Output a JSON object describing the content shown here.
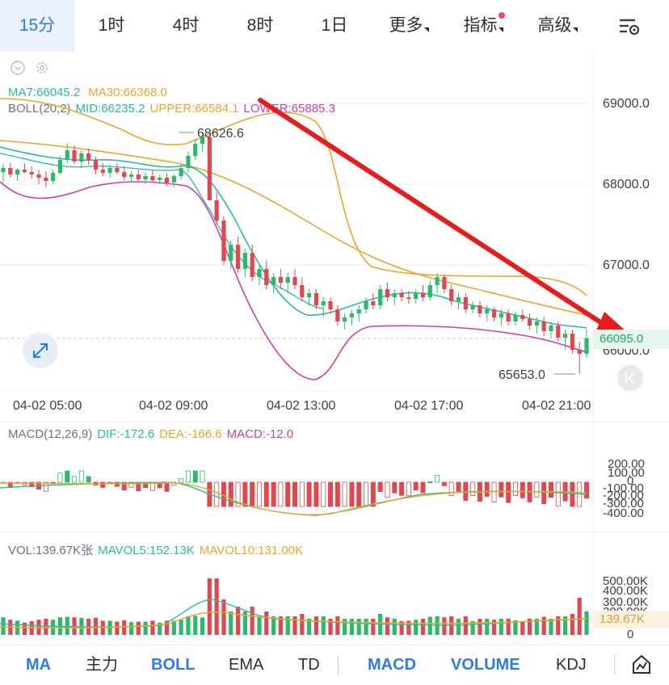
{
  "tabs": [
    {
      "label": "15分",
      "active": true
    },
    {
      "label": "1时"
    },
    {
      "label": "4时"
    },
    {
      "label": "8时"
    },
    {
      "label": "1日"
    },
    {
      "label": "更多",
      "dropdown": true
    },
    {
      "label": "指标",
      "dropdown": true,
      "dot": true
    },
    {
      "label": "高级",
      "dropdown": true
    }
  ],
  "legend": {
    "ma7": "MA7:66045.2",
    "ma30": "MA30:66368.0",
    "boll": "BOLL(20,2)",
    "mid": "MID:66235.2",
    "upper": "UPPER:66584.1",
    "lower": "LOWER:65885.3",
    "macd_params": "MACD(12,26,9)",
    "dif": "DIF:-172.6",
    "dea": "DEA:-166.6",
    "macd": "MACD:-12.0",
    "vol": "VOL:139.67K张",
    "mavol5": "MAVOL5:152.13K",
    "mavol10": "MAVOL10:131.00K"
  },
  "price_axis": [
    "69000.0",
    "68000.0",
    "67000.0",
    "66000.0"
  ],
  "current_price": "66095.0",
  "high_label": "68626.6",
  "low_label": "65653.0",
  "time_axis": [
    "04-02 05:00",
    "04-02 09:00",
    "04-02 13:00",
    "04-02 17:00",
    "04-02 21:00"
  ],
  "macd_axis": [
    "200.00",
    "100.00",
    "0",
    "-100.00",
    "-200.00",
    "-300.00",
    "-400.00"
  ],
  "vol_axis": [
    "500.00K",
    "400.00K",
    "300.00K",
    "200.00K",
    "0"
  ],
  "current_vol": "139.67K",
  "bottom_tabs": [
    {
      "label": "MA",
      "on": true
    },
    {
      "label": "主力"
    },
    {
      "label": "BOLL",
      "on": true
    },
    {
      "label": "EMA"
    },
    {
      "label": "TD"
    },
    {
      "label": "MACD",
      "on": true
    },
    {
      "label": "VOLUME",
      "on": true
    },
    {
      "label": "KDJ"
    }
  ],
  "colors": {
    "up": "#2fb86b",
    "down": "#e0484f",
    "ma7": "#2bb9a6",
    "ma30": "#e6a72c",
    "boll_lower": "#cf3fa7",
    "arrow": "#e51d1d",
    "accent": "#2f7be6"
  },
  "icons": [
    "settings-sliders-icon",
    "chevron-circle-icon",
    "gear-icon",
    "expand-icon",
    "collapse-back-icon",
    "chart-draw-icon"
  ],
  "chart_data": [
    {
      "type": "candlestick",
      "interval": "15分",
      "x_ticks": [
        "04-02 05:00",
        "04-02 09:00",
        "04-02 13:00",
        "04-02 17:00",
        "04-02 21:00"
      ],
      "y_ticks": [
        69000,
        68000,
        67000,
        66000
      ],
      "high": 68626.6,
      "low": 65653.0,
      "last": 66095.0,
      "ohlc": [
        [
          68150,
          68250,
          68020,
          68200
        ],
        [
          68200,
          68260,
          68080,
          68120
        ],
        [
          68120,
          68200,
          68040,
          68180
        ],
        [
          68180,
          68260,
          68140,
          68150
        ],
        [
          68150,
          68220,
          68070,
          68120
        ],
        [
          68120,
          68180,
          68000,
          68080
        ],
        [
          68080,
          68160,
          67960,
          68040
        ],
        [
          68040,
          68180,
          68000,
          68140
        ],
        [
          68140,
          68350,
          68120,
          68300
        ],
        [
          68300,
          68500,
          68260,
          68420
        ],
        [
          68420,
          68480,
          68250,
          68280
        ],
        [
          68280,
          68420,
          68200,
          68380
        ],
        [
          68380,
          68440,
          68240,
          68300
        ],
        [
          68300,
          68340,
          68120,
          68180
        ],
        [
          68180,
          68260,
          68100,
          68140
        ],
        [
          68140,
          68240,
          68080,
          68200
        ],
        [
          68200,
          68260,
          68120,
          68150
        ],
        [
          68150,
          68220,
          68050,
          68090
        ],
        [
          68090,
          68160,
          68030,
          68120
        ],
        [
          68120,
          68180,
          68040,
          68060
        ],
        [
          68060,
          68140,
          68000,
          68100
        ],
        [
          68100,
          68180,
          68020,
          68050
        ],
        [
          68050,
          68120,
          68000,
          68080
        ],
        [
          68080,
          68140,
          67980,
          68020
        ],
        [
          68020,
          68120,
          67960,
          68100
        ],
        [
          68100,
          68240,
          68060,
          68200
        ],
        [
          68200,
          68400,
          68150,
          68350
        ],
        [
          68350,
          68560,
          68300,
          68500
        ],
        [
          68500,
          68627,
          68400,
          68580
        ],
        [
          68580,
          68600,
          67800,
          67800
        ],
        [
          67800,
          67900,
          67500,
          67550
        ],
        [
          67550,
          67600,
          67000,
          67050
        ],
        [
          67050,
          67300,
          66950,
          67250
        ],
        [
          67250,
          67350,
          66900,
          66950
        ],
        [
          66950,
          67200,
          66850,
          67150
        ],
        [
          67150,
          67250,
          66800,
          66850
        ],
        [
          66850,
          67000,
          66750,
          66950
        ],
        [
          66950,
          67050,
          66700,
          66750
        ],
        [
          66750,
          66900,
          66650,
          66850
        ],
        [
          66850,
          66950,
          66700,
          66780
        ],
        [
          66780,
          66900,
          66650,
          66850
        ],
        [
          66850,
          66950,
          66700,
          66750
        ],
        [
          66750,
          66850,
          66550,
          66600
        ],
        [
          66600,
          66700,
          66500,
          66650
        ],
        [
          66650,
          66700,
          66450,
          66500
        ],
        [
          66500,
          66600,
          66350,
          66550
        ],
        [
          66550,
          66600,
          66400,
          66450
        ],
        [
          66450,
          66500,
          66250,
          66300
        ],
        [
          66300,
          66400,
          66200,
          66350
        ],
        [
          66350,
          66450,
          66250,
          66400
        ],
        [
          66400,
          66500,
          66300,
          66450
        ],
        [
          66450,
          66600,
          66400,
          66550
        ],
        [
          66550,
          66650,
          66450,
          66500
        ],
        [
          66500,
          66750,
          66450,
          66700
        ],
        [
          66700,
          66780,
          66550,
          66600
        ],
        [
          66600,
          66700,
          66500,
          66650
        ],
        [
          66650,
          66700,
          66550,
          66600
        ],
        [
          66600,
          66680,
          66520,
          66580
        ],
        [
          66580,
          66700,
          66520,
          66650
        ],
        [
          66650,
          66750,
          66550,
          66600
        ],
        [
          66600,
          66800,
          66560,
          66750
        ],
        [
          66750,
          66900,
          66650,
          66850
        ],
        [
          66850,
          66880,
          66650,
          66700
        ],
        [
          66700,
          66750,
          66500,
          66550
        ],
        [
          66550,
          66650,
          66450,
          66600
        ],
        [
          66600,
          66650,
          66400,
          66450
        ],
        [
          66450,
          66550,
          66400,
          66500
        ],
        [
          66500,
          66550,
          66350,
          66400
        ],
        [
          66400,
          66500,
          66300,
          66450
        ],
        [
          66450,
          66480,
          66300,
          66350
        ],
        [
          66350,
          66450,
          66250,
          66400
        ],
        [
          66400,
          66450,
          66250,
          66300
        ],
        [
          66300,
          66420,
          66250,
          66380
        ],
        [
          66380,
          66450,
          66300,
          66330
        ],
        [
          66330,
          66400,
          66200,
          66250
        ],
        [
          66250,
          66350,
          66150,
          66300
        ],
        [
          66300,
          66360,
          66120,
          66180
        ],
        [
          66180,
          66300,
          66100,
          66250
        ],
        [
          66250,
          66300,
          66050,
          66100
        ],
        [
          66100,
          66200,
          65950,
          66150
        ],
        [
          66150,
          66200,
          65900,
          65950
        ],
        [
          65950,
          66050,
          65653,
          65900
        ],
        [
          65900,
          66200,
          65850,
          66095
        ]
      ],
      "overlays": {
        "MA7": 66045.2,
        "MA30": 66368.0,
        "BOLL_MID": 66235.2,
        "BOLL_UPPER": 66584.1,
        "BOLL_LOWER": 65885.3
      }
    },
    {
      "type": "macd",
      "params": [
        12,
        26,
        9
      ],
      "y_ticks": [
        200,
        100,
        0,
        -100,
        -200,
        -300,
        -400
      ],
      "dif": -172.6,
      "dea": -166.6,
      "macd": -12.0
    },
    {
      "type": "bar",
      "name": "VOL",
      "y_ticks": [
        "500.00K",
        "400.00K",
        "300.00K",
        "200.00K",
        "0"
      ],
      "last": "139.67K",
      "MAVOL5": "152.13K",
      "MAVOL10": "131.00K"
    }
  ]
}
